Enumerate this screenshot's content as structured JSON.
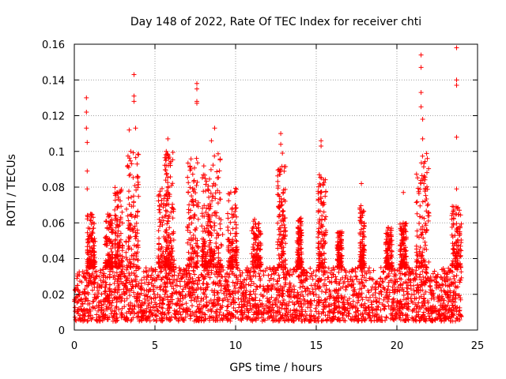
{
  "chart_data": {
    "type": "scatter",
    "title": "Day 148 of 2022, Rate Of TEC Index for receiver chti",
    "xlabel": "GPS time / hours",
    "ylabel": "ROTI / TECUs",
    "xlim": [
      0,
      25
    ],
    "ylim": [
      0,
      0.16
    ],
    "xticks": [
      0,
      5,
      10,
      15,
      20,
      25
    ],
    "xtick_labels": [
      "0",
      "5",
      "10",
      "15",
      "20",
      "25"
    ],
    "yticks": [
      0,
      0.02,
      0.04,
      0.06,
      0.08,
      0.1,
      0.12,
      0.14,
      0.16
    ],
    "ytick_labels": [
      "0",
      "0.02",
      "0.04",
      "0.06",
      "0.08",
      "0.1",
      "0.12",
      "0.14",
      "0.16"
    ],
    "grid": true,
    "marker": "+",
    "marker_color": "#ff0000",
    "data_range_hours": [
      0,
      24
    ],
    "baseline_band": [
      0.005,
      0.035
    ],
    "series": [
      {
        "name": "ROTI",
        "notable_points": [
          {
            "x": 0.75,
            "y": 0.13
          },
          {
            "x": 0.75,
            "y": 0.122
          },
          {
            "x": 0.75,
            "y": 0.113
          },
          {
            "x": 0.8,
            "y": 0.105
          },
          {
            "x": 0.8,
            "y": 0.089
          },
          {
            "x": 0.8,
            "y": 0.079
          },
          {
            "x": 3.4,
            "y": 0.112
          },
          {
            "x": 3.5,
            "y": 0.1
          },
          {
            "x": 3.7,
            "y": 0.143
          },
          {
            "x": 3.7,
            "y": 0.131
          },
          {
            "x": 3.7,
            "y": 0.128
          },
          {
            "x": 3.8,
            "y": 0.113
          },
          {
            "x": 5.8,
            "y": 0.107
          },
          {
            "x": 5.7,
            "y": 0.1
          },
          {
            "x": 7.6,
            "y": 0.138
          },
          {
            "x": 7.6,
            "y": 0.135
          },
          {
            "x": 7.6,
            "y": 0.128
          },
          {
            "x": 7.6,
            "y": 0.127
          },
          {
            "x": 8.7,
            "y": 0.113
          },
          {
            "x": 8.5,
            "y": 0.106
          },
          {
            "x": 12.8,
            "y": 0.11
          },
          {
            "x": 12.8,
            "y": 0.104
          },
          {
            "x": 12.9,
            "y": 0.099
          },
          {
            "x": 15.3,
            "y": 0.106
          },
          {
            "x": 15.3,
            "y": 0.103
          },
          {
            "x": 17.8,
            "y": 0.082
          },
          {
            "x": 20.4,
            "y": 0.077
          },
          {
            "x": 21.5,
            "y": 0.154
          },
          {
            "x": 21.5,
            "y": 0.147
          },
          {
            "x": 21.5,
            "y": 0.133
          },
          {
            "x": 21.5,
            "y": 0.125
          },
          {
            "x": 21.6,
            "y": 0.118
          },
          {
            "x": 21.6,
            "y": 0.107
          },
          {
            "x": 23.7,
            "y": 0.158
          },
          {
            "x": 23.7,
            "y": 0.14
          },
          {
            "x": 23.7,
            "y": 0.137
          },
          {
            "x": 23.7,
            "y": 0.108
          },
          {
            "x": 23.7,
            "y": 0.079
          }
        ],
        "activity_bursts": [
          {
            "x": [
              0.8,
              1.3
            ],
            "peak": 0.065
          },
          {
            "x": [
              1.9,
              2.4
            ],
            "peak": 0.065
          },
          {
            "x": [
              2.5,
              3.0
            ],
            "peak": 0.08
          },
          {
            "x": [
              3.2,
              4.0
            ],
            "peak": 0.1
          },
          {
            "x": [
              5.2,
              5.9
            ],
            "peak": 0.08
          },
          {
            "x": [
              5.6,
              6.2
            ],
            "peak": 0.1
          },
          {
            "x": [
              7.0,
              7.7
            ],
            "peak": 0.097
          },
          {
            "x": [
              7.9,
              8.5
            ],
            "peak": 0.093
          },
          {
            "x": [
              8.3,
              9.2
            ],
            "peak": 0.1
          },
          {
            "x": [
              9.5,
              10.1
            ],
            "peak": 0.08
          },
          {
            "x": [
              11.0,
              11.6
            ],
            "peak": 0.062
          },
          {
            "x": [
              12.6,
              13.1
            ],
            "peak": 0.093
          },
          {
            "x": [
              13.8,
              14.1
            ],
            "peak": 0.063
          },
          {
            "x": [
              15.1,
              15.6
            ],
            "peak": 0.087
          },
          {
            "x": [
              16.3,
              16.6
            ],
            "peak": 0.055
          },
          {
            "x": [
              17.7,
              18.0
            ],
            "peak": 0.07
          },
          {
            "x": [
              19.3,
              19.7
            ],
            "peak": 0.058
          },
          {
            "x": [
              20.2,
              20.6
            ],
            "peak": 0.06
          },
          {
            "x": [
              21.2,
              22.0
            ],
            "peak": 0.1
          },
          {
            "x": [
              23.4,
              24.0
            ],
            "peak": 0.07
          }
        ]
      }
    ]
  }
}
